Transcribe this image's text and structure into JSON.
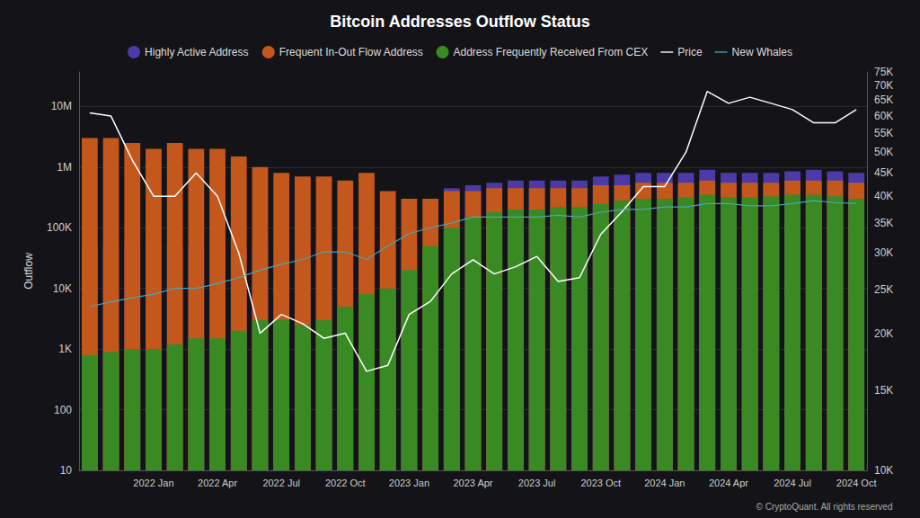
{
  "chart_data": {
    "type": "bar",
    "title": "Bitcoin Addresses Outflow Status",
    "y_label": "Outflow",
    "annotations": [
      "© CryptoQuant. All rights reserved"
    ],
    "log": "y",
    "legend": "top",
    "grid": true,
    "categories": [
      null,
      null,
      null,
      "2022 Jan",
      null,
      null,
      "2022 Apr",
      null,
      null,
      "2022 Jul",
      null,
      null,
      "2022 Oct",
      null,
      null,
      "2023 Jan",
      null,
      null,
      "2023 Apr",
      null,
      null,
      "2023 Jul",
      null,
      null,
      "2023 Oct",
      null,
      null,
      "2024 Jan",
      null,
      null,
      "2024 Apr",
      null,
      null,
      "2024 Jul",
      null,
      null,
      "2024 Oct"
    ],
    "ylim": [
      10,
      37000000
    ],
    "yticks": [
      10,
      100,
      {
        "value": 1000,
        "label": "1K"
      },
      {
        "value": 10000,
        "label": "10K"
      },
      {
        "value": 100000,
        "label": "100K"
      },
      {
        "value": 1000000,
        "label": "1M"
      },
      {
        "value": 10000000,
        "label": "10M"
      }
    ],
    "y2lim": [
      10000,
      75000
    ],
    "y2ticks": [
      {
        "value": 10000,
        "label": "10K"
      },
      {
        "value": 15000,
        "label": "15K"
      },
      {
        "value": 20000,
        "label": "20K"
      },
      {
        "value": 25000,
        "label": "25K"
      },
      {
        "value": 30000,
        "label": "30K"
      },
      {
        "value": 35000,
        "label": "35K"
      },
      {
        "value": 40000,
        "label": "40K"
      },
      {
        "value": 45000,
        "label": "45K"
      },
      {
        "value": 50000,
        "label": "50K"
      },
      {
        "value": 55000,
        "label": "55K"
      },
      {
        "value": 60000,
        "label": "60K"
      },
      {
        "value": 65000,
        "label": "65K"
      },
      {
        "value": 70000,
        "label": "70K"
      },
      {
        "value": 75000,
        "label": "75K"
      }
    ],
    "series": [
      {
        "name": "Highly Active Address",
        "type": "bar",
        "color": "#4b3aa8",
        "values": [
          50000,
          50000,
          50000,
          50000,
          50000,
          50000,
          50000,
          50000,
          50000,
          50000,
          50000,
          50000,
          50000,
          50000,
          50000,
          50000,
          50000,
          450000,
          500000,
          550000,
          600000,
          600000,
          600000,
          600000,
          700000,
          750000,
          800000,
          800000,
          800000,
          900000,
          800000,
          800000,
          800000,
          850000,
          900000,
          850000,
          800000
        ]
      },
      {
        "name": "Frequent In-Out Flow Address",
        "type": "bar",
        "color": "#c4581c",
        "values": [
          3000000,
          3000000,
          2500000,
          2000000,
          2500000,
          2000000,
          2000000,
          1500000,
          1000000,
          800000,
          700000,
          700000,
          600000,
          800000,
          400000,
          300000,
          300000,
          400000,
          400000,
          450000,
          450000,
          450000,
          450000,
          450000,
          500000,
          500000,
          550000,
          550000,
          550000,
          600000,
          550000,
          550000,
          550000,
          600000,
          600000,
          600000,
          550000
        ]
      },
      {
        "name": "Address Frequently Received From CEX",
        "type": "bar",
        "color": "#3a8a24",
        "values": [
          800,
          900,
          1000,
          1000,
          1200,
          1500,
          1500,
          2000,
          3000,
          3000,
          2500,
          3000,
          5000,
          8000,
          10000,
          20000,
          50000,
          100000,
          150000,
          180000,
          200000,
          200000,
          220000,
          220000,
          250000,
          280000,
          300000,
          300000,
          320000,
          350000,
          320000,
          320000,
          330000,
          350000,
          350000,
          330000,
          300000
        ]
      },
      {
        "name": "Price",
        "type": "line",
        "axis": "y2",
        "color": "#ffffff",
        "values": [
          61000,
          60000,
          48000,
          40000,
          40000,
          45000,
          40000,
          30000,
          20000,
          22000,
          21000,
          19500,
          20000,
          16500,
          17000,
          22000,
          23500,
          27000,
          29000,
          27000,
          28000,
          29500,
          26000,
          26500,
          33000,
          37000,
          42000,
          42000,
          50000,
          68000,
          64000,
          66000,
          64000,
          62000,
          58000,
          58000,
          62000
        ]
      },
      {
        "name": "New Whales",
        "type": "line",
        "color": "#4aa3b8",
        "values": [
          5000,
          6000,
          7000,
          8000,
          10000,
          10000,
          12000,
          15000,
          20000,
          25000,
          30000,
          40000,
          40000,
          30000,
          50000,
          80000,
          100000,
          120000,
          150000,
          150000,
          150000,
          150000,
          160000,
          150000,
          180000,
          200000,
          200000,
          220000,
          220000,
          250000,
          250000,
          230000,
          230000,
          250000,
          280000,
          260000,
          250000
        ]
      }
    ]
  }
}
